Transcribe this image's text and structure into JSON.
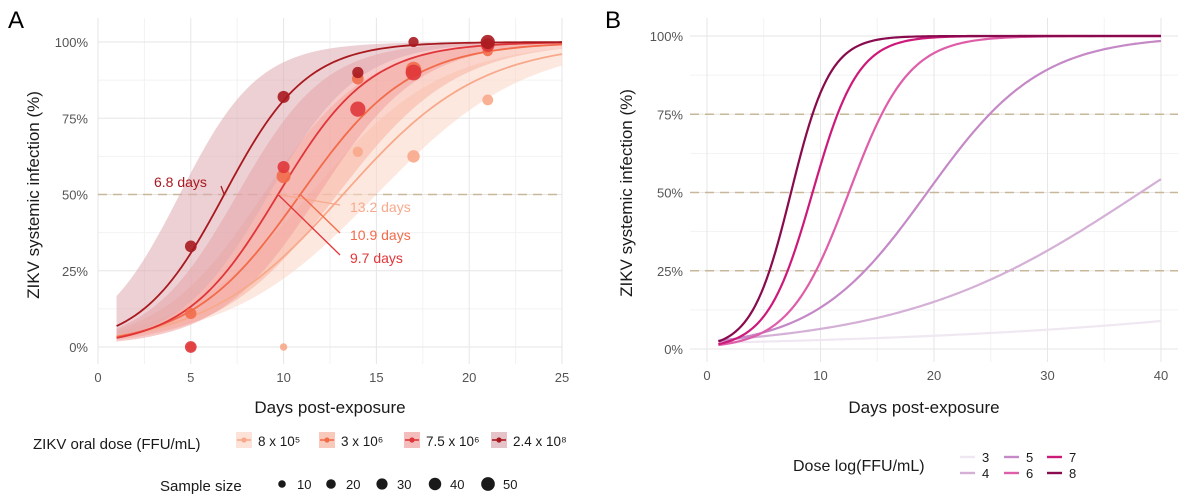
{
  "chart_data": [
    {
      "panel": "A",
      "type": "line",
      "xlabel": "Days post-exposure",
      "ylabel": "ZIKV systemic infection (%)",
      "xlim": [
        0,
        25
      ],
      "ylim": [
        0,
        100
      ],
      "xticks": [
        0,
        5,
        10,
        15,
        20,
        25
      ],
      "yticks": [
        "0%",
        "25%",
        "50%",
        "75%",
        "100%"
      ],
      "ytick_values": [
        0,
        25,
        50,
        75,
        100
      ],
      "reference_line": 50,
      "grid": true,
      "legend_title": "ZIKV oral dose (FFU/mL)",
      "size_legend_title": "Sample size",
      "size_legend_values": [
        "10",
        "20",
        "30",
        "40",
        "50"
      ],
      "series": [
        {
          "name": "8 x 10⁵",
          "color": "#f8a98b",
          "ci_color": "#fbd5c6",
          "midpoint": 13.2,
          "slope": 0.27,
          "label": "13.2 days",
          "points": [
            [
              5,
              0,
              10
            ],
            [
              10,
              0,
              5
            ],
            [
              14,
              64,
              14
            ],
            [
              17,
              62.5,
              24
            ],
            [
              21,
              81,
              16
            ]
          ]
        },
        {
          "name": "3 x 10⁶",
          "color": "#f26b4a",
          "ci_color": "#f7b3a0",
          "midpoint": 10.9,
          "slope": 0.34,
          "label": "10.9 days",
          "points": [
            [
              5,
              11,
              18
            ],
            [
              10,
              56,
              32
            ],
            [
              14,
              88,
              20
            ],
            [
              17,
              91,
              42
            ],
            [
              21,
              97,
              14
            ]
          ]
        },
        {
          "name": "7.5 x 10⁶",
          "color": "#e0363a",
          "ci_color": "#f1a09f",
          "midpoint": 9.7,
          "slope": 0.4,
          "label": "9.7 days",
          "points": [
            [
              5,
              0,
              20
            ],
            [
              10,
              59,
              22
            ],
            [
              14,
              78,
              40
            ],
            [
              17,
              90,
              44
            ],
            [
              21,
              99,
              30
            ]
          ]
        },
        {
          "name": "2.4 x 10⁸",
          "color": "#a8191f",
          "ci_color": "#dcaab0",
          "midpoint": 6.8,
          "slope": 0.45,
          "label": "6.8 days",
          "points": [
            [
              5,
              33,
              20
            ],
            [
              10,
              82,
              22
            ],
            [
              14,
              90,
              18
            ],
            [
              17,
              100,
              14
            ],
            [
              21,
              100,
              34
            ]
          ]
        }
      ]
    },
    {
      "panel": "B",
      "type": "line",
      "xlabel": "Days post-exposure",
      "ylabel": "ZIKV systemic infection (%)",
      "xlim": [
        0,
        40
      ],
      "ylim": [
        0,
        100
      ],
      "xticks": [
        0,
        10,
        20,
        30,
        40
      ],
      "yticks": [
        "0%",
        "25%",
        "50%",
        "75%",
        "100%"
      ],
      "ytick_values": [
        0,
        25,
        50,
        75,
        100
      ],
      "reference_lines": [
        25,
        50,
        75
      ],
      "grid": true,
      "legend_title": "Dose log(FFU/mL)",
      "series": [
        {
          "name": "3",
          "color": "#efe8f2",
          "midpoint": 98,
          "slope": 0.04
        },
        {
          "name": "4",
          "color": "#d4b0d6",
          "midpoint": 38.2,
          "slope": 0.095
        },
        {
          "name": "5",
          "color": "#c489c6",
          "midpoint": 19.4,
          "slope": 0.2
        },
        {
          "name": "6",
          "color": "#de5ea9",
          "midpoint": 12.5,
          "slope": 0.38
        },
        {
          "name": "7",
          "color": "#cc1a7a",
          "midpoint": 9.3,
          "slope": 0.5
        },
        {
          "name": "8",
          "color": "#8a0a4e",
          "midpoint": 7.4,
          "slope": 0.58
        }
      ]
    }
  ],
  "panels": {
    "a_label": "A",
    "b_label": "B"
  }
}
